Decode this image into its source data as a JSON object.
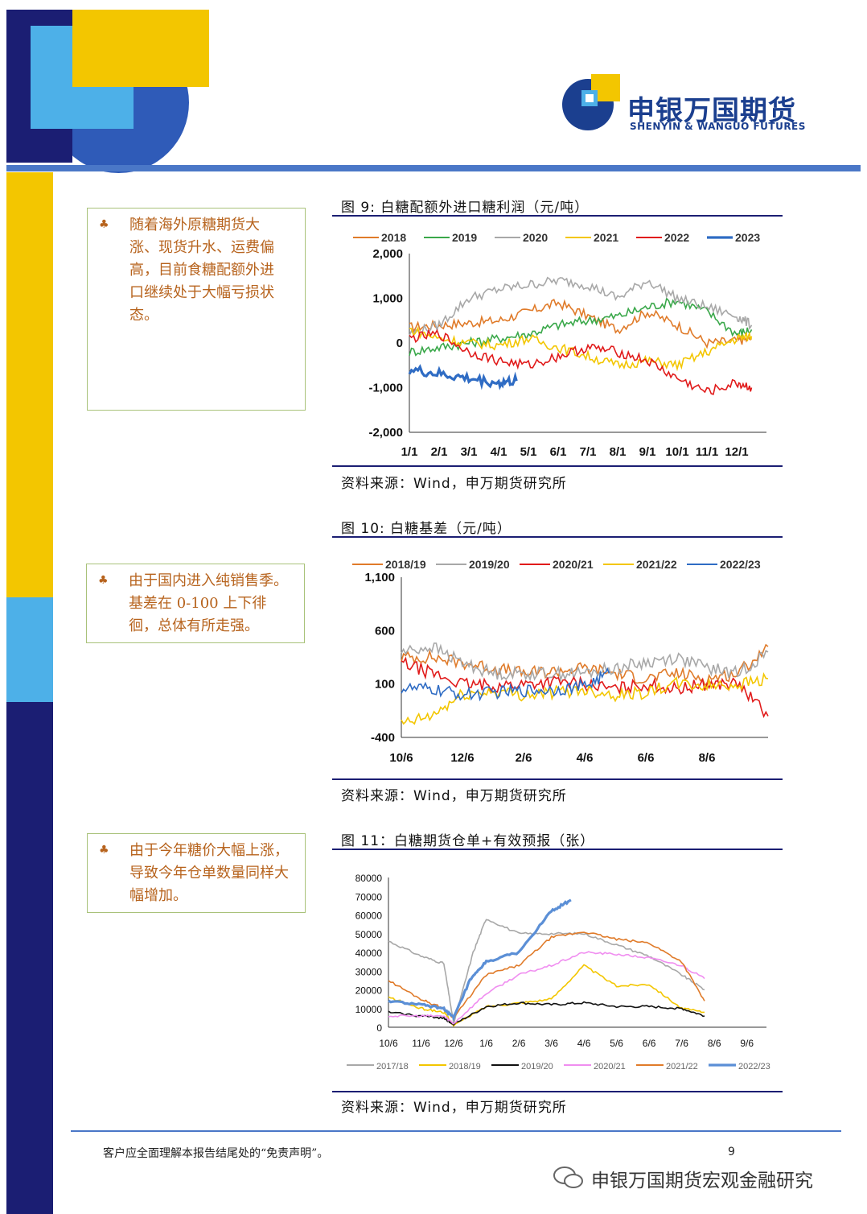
{
  "logo": {
    "cn": "申银万国期货",
    "en": "SHENYIN & WANGUO FUTURES"
  },
  "notes": [
    {
      "bullet": "♣",
      "text": "随着海外原糖期货大涨、现货升水、运费偏高，目前食糖配额外进口继续处于大幅亏损状态。"
    },
    {
      "bullet": "♣",
      "text": "由于国内进入纯销售季。基差在 0-100 上下徘徊，总体有所走强。"
    },
    {
      "bullet": "♣",
      "text": "由于今年糖价大幅上涨，导致今年仓单数量同样大幅增加。"
    }
  ],
  "figures": [
    {
      "title": "图 9:   白糖配额外进口糖利润（元/吨）",
      "source": "资料来源：Wind，申万期货研究所"
    },
    {
      "title": "图 10:   白糖基差（元/吨）",
      "source": "资料来源：Wind，申万期货研究所"
    },
    {
      "title": "图 11：白糖期货仓单+有效预报（张）",
      "source": "资料来源：Wind，申万期货研究所"
    }
  ],
  "chart_data": [
    {
      "type": "line",
      "x_ticks": [
        "1/1",
        "2/1",
        "3/1",
        "4/1",
        "5/1",
        "6/1",
        "7/1",
        "8/1",
        "9/1",
        "10/1",
        "11/1",
        "12/1"
      ],
      "x_tick_labels": [
        "1/1",
        "2/1",
        "3/1",
        "4/1",
        "5/1",
        "6/1",
        "7/1",
        "8/1",
        "9/1",
        "10/1",
        "11/1",
        "12/1"
      ],
      "y_ticks": [
        "2,000",
        "1,000",
        "0",
        "-1,000",
        "-2,000"
      ],
      "ylim": [
        -2000,
        2000
      ],
      "legend_position": "top",
      "series": [
        {
          "name": "2018",
          "color": "#e07b2a",
          "x": [
            0,
            1,
            2,
            3,
            4,
            5,
            6,
            7,
            8,
            9,
            10,
            11,
            11.5
          ],
          "values": [
            350,
            400,
            450,
            500,
            700,
            900,
            600,
            300,
            700,
            400,
            0,
            50,
            100
          ]
        },
        {
          "name": "2019",
          "color": "#3aa84a",
          "x": [
            0,
            1,
            2,
            3,
            4,
            5,
            6,
            7,
            8,
            9,
            10,
            11,
            11.5
          ],
          "values": [
            -200,
            -100,
            0,
            100,
            200,
            400,
            500,
            600,
            800,
            950,
            700,
            200,
            300
          ]
        },
        {
          "name": "2020",
          "color": "#a8a8a8",
          "x": [
            0,
            1,
            2,
            3,
            4,
            5,
            6,
            7,
            8,
            9,
            10,
            11,
            11.5
          ],
          "values": [
            200,
            400,
            1000,
            1200,
            1300,
            1400,
            1300,
            1000,
            1400,
            1000,
            800,
            600,
            400
          ]
        },
        {
          "name": "2021",
          "color": "#f3c600",
          "x": [
            0,
            1,
            2,
            3,
            4,
            5,
            6,
            7,
            8,
            9,
            10,
            11,
            11.5
          ],
          "values": [
            300,
            100,
            0,
            -50,
            100,
            -100,
            -300,
            -500,
            -400,
            -500,
            -200,
            100,
            150
          ]
        },
        {
          "name": "2022",
          "color": "#e11b1b",
          "x": [
            0,
            1,
            2,
            3,
            4,
            5,
            6,
            7,
            8,
            9,
            10,
            11,
            11.5
          ],
          "values": [
            100,
            200,
            -200,
            -400,
            -500,
            -300,
            -100,
            -200,
            -400,
            -800,
            -1100,
            -900,
            -1000
          ]
        },
        {
          "name": "2023",
          "color": "#2f6cc4",
          "x": [
            0,
            1,
            2,
            3,
            3.6
          ],
          "values": [
            -600,
            -700,
            -800,
            -900,
            -850
          ]
        }
      ]
    },
    {
      "type": "line",
      "x_tick_labels": [
        "10/6",
        "12/6",
        "2/6",
        "4/6",
        "6/6",
        "8/6"
      ],
      "y_ticks": [
        "1,100",
        "600",
        "100",
        "-400"
      ],
      "ylim": [
        -400,
        1100
      ],
      "legend_position": "top",
      "series": [
        {
          "name": "2018/19",
          "color": "#e07b2a",
          "x": [
            0,
            1,
            2,
            3,
            4,
            5,
            6,
            7,
            8,
            9,
            10,
            11,
            12
          ],
          "values": [
            350,
            350,
            300,
            250,
            200,
            220,
            250,
            200,
            150,
            200,
            150,
            200,
            450
          ]
        },
        {
          "name": "2019/20",
          "color": "#a8a8a8",
          "x": [
            0,
            1,
            2,
            3,
            4,
            5,
            6,
            7,
            8,
            9,
            10,
            11,
            12
          ],
          "values": [
            400,
            450,
            300,
            200,
            200,
            200,
            200,
            250,
            300,
            350,
            250,
            200,
            400
          ]
        },
        {
          "name": "2020/21",
          "color": "#e11b1b",
          "x": [
            0,
            1,
            2,
            3,
            4,
            5,
            6,
            7,
            8,
            9,
            10,
            11,
            12
          ],
          "values": [
            300,
            200,
            100,
            80,
            100,
            120,
            100,
            50,
            100,
            50,
            100,
            100,
            -200
          ]
        },
        {
          "name": "2021/22",
          "color": "#f3c600",
          "x": [
            0,
            1,
            2,
            3,
            4,
            5,
            6,
            7,
            8,
            9,
            10,
            11,
            12
          ],
          "values": [
            -280,
            -200,
            0,
            30,
            0,
            20,
            50,
            0,
            20,
            100,
            80,
            100,
            150
          ]
        },
        {
          "name": "2022/23",
          "color": "#2f6cc4",
          "x": [
            0,
            1,
            2,
            3,
            4,
            5,
            6,
            6.8
          ],
          "values": [
            60,
            50,
            0,
            20,
            40,
            50,
            80,
            200
          ]
        }
      ]
    },
    {
      "type": "line",
      "x_tick_labels": [
        "10/6",
        "11/6",
        "12/6",
        "1/6",
        "2/6",
        "3/6",
        "4/6",
        "5/6",
        "6/6",
        "7/6",
        "8/6",
        "9/6"
      ],
      "y_ticks": [
        "80000",
        "70000",
        "60000",
        "50000",
        "40000",
        "30000",
        "20000",
        "10000",
        "0"
      ],
      "ylim": [
        0,
        80000
      ],
      "legend_position": "bottom",
      "series": [
        {
          "name": "2017/18",
          "color": "#a8a8a8",
          "x": [
            0,
            1,
            1.7,
            2,
            2.6,
            3,
            4,
            5,
            6,
            7,
            8,
            9,
            9.7
          ],
          "values": [
            46000,
            38000,
            34000,
            2000,
            40000,
            58000,
            50000,
            50000,
            50000,
            44000,
            38000,
            28000,
            20000
          ]
        },
        {
          "name": "2018/19",
          "color": "#f3c600",
          "x": [
            0,
            1,
            1.7,
            2,
            3,
            4,
            5,
            6,
            7,
            8,
            9,
            9.7
          ],
          "values": [
            16000,
            10000,
            8000,
            1000,
            11000,
            13000,
            15000,
            33000,
            22000,
            23000,
            10000,
            8000
          ]
        },
        {
          "name": "2019/20",
          "color": "#111111",
          "x": [
            0,
            1,
            1.7,
            2,
            3,
            4,
            5,
            6,
            7,
            8,
            9,
            9.7
          ],
          "values": [
            8000,
            6000,
            5000,
            1500,
            11000,
            13000,
            12000,
            13000,
            11000,
            11000,
            10000,
            6000
          ]
        },
        {
          "name": "2020/21",
          "color": "#f08ef0",
          "x": [
            0,
            1,
            1.7,
            2,
            3,
            4,
            5,
            6,
            7,
            8,
            9,
            9.7
          ],
          "values": [
            6000,
            6000,
            6000,
            2000,
            18000,
            28000,
            33000,
            40000,
            39000,
            37000,
            33000,
            26000
          ]
        },
        {
          "name": "2021/22",
          "color": "#e07b2a",
          "x": [
            0,
            1,
            1.7,
            2,
            3,
            4,
            5,
            6,
            7,
            8,
            9,
            9.7
          ],
          "values": [
            25000,
            15000,
            10000,
            5000,
            28000,
            33000,
            48000,
            51000,
            47000,
            45000,
            35000,
            14000
          ]
        },
        {
          "name": "2022/23",
          "color": "#5b8fd6",
          "x": [
            0,
            1,
            1.7,
            2,
            2.5,
            3,
            4,
            5,
            5.6
          ],
          "values": [
            14000,
            12000,
            10000,
            5000,
            25000,
            35000,
            40000,
            62000,
            68000
          ]
        }
      ]
    }
  ],
  "footer": {
    "note": "客户应全面理解本报告结尾处的“免责声明”。",
    "page": "9",
    "wechat": "申银万国期货宏观金融研究"
  }
}
